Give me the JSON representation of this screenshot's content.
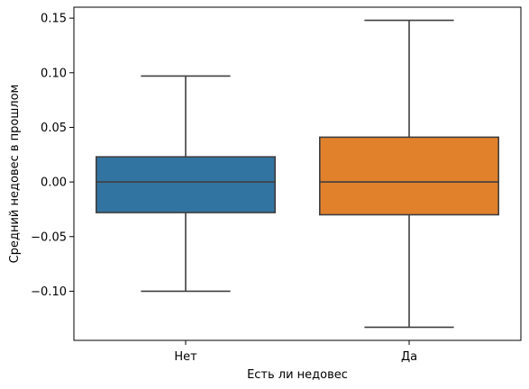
{
  "chart_data": {
    "type": "box",
    "xlabel": "Есть ли недовес",
    "ylabel": "Средний недовес в прошлом",
    "categories": [
      "Нет",
      "Да"
    ],
    "ylim": [
      -0.145,
      0.16
    ],
    "yticks": [
      0.15,
      0.1,
      0.05,
      0.0,
      -0.05,
      -0.1
    ],
    "ytick_labels": [
      "0.15",
      "0.10",
      "0.05",
      "0.00",
      "−0.05",
      "−0.10"
    ],
    "boxes": [
      {
        "category": "Нет",
        "whisker_low": -0.1,
        "q1": -0.028,
        "median": 0.0,
        "q3": 0.023,
        "whisker_high": 0.097,
        "color": "#3274a1"
      },
      {
        "category": "Да",
        "whisker_low": -0.133,
        "q1": -0.03,
        "median": 0.0,
        "q3": 0.041,
        "whisker_high": 0.148,
        "color": "#e1812c"
      }
    ],
    "grid": false,
    "legend": "none"
  }
}
